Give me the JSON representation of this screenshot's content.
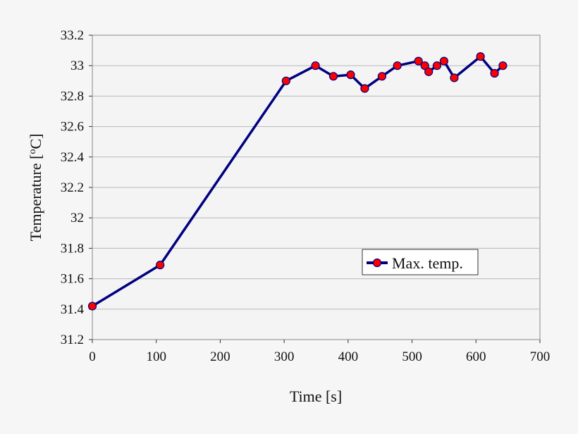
{
  "chart_data": {
    "type": "line",
    "title": "",
    "xlabel": "Time [s]",
    "ylabel_parts": [
      "Temperature [",
      "o",
      "C]"
    ],
    "xlim": [
      0,
      700
    ],
    "ylim": [
      31.2,
      33.2
    ],
    "xticks": [
      0,
      100,
      200,
      300,
      400,
      500,
      600,
      700
    ],
    "yticks": [
      "31.2",
      "31.4",
      "31.6",
      "31.8",
      "32",
      "32.2",
      "32.4",
      "32.6",
      "32.8",
      "33",
      "33.2"
    ],
    "grid": "horizontal",
    "legend_placement": "center-right",
    "series": [
      {
        "name": "Max. temp.",
        "line_color": "#000080",
        "marker_color": "#ff0000",
        "x": [
          0,
          106,
          303,
          349,
          377,
          404,
          426,
          453,
          477,
          510,
          520,
          526,
          539,
          550,
          566,
          607,
          629,
          642
        ],
        "y": [
          31.42,
          31.69,
          32.9,
          33.0,
          32.93,
          32.94,
          32.85,
          32.93,
          33.0,
          33.03,
          33.0,
          32.96,
          33.0,
          33.03,
          32.92,
          33.06,
          32.95,
          33.0
        ]
      }
    ]
  }
}
